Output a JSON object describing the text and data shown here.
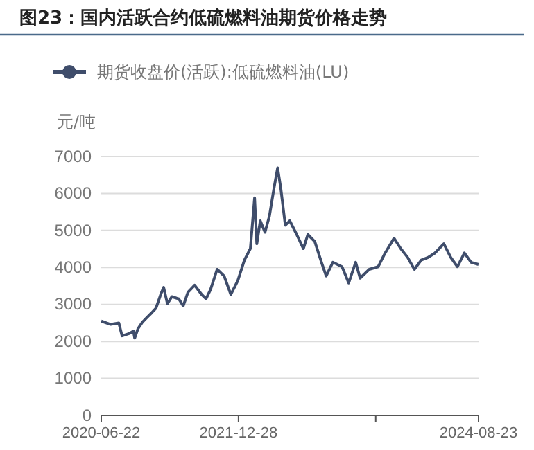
{
  "chart_data": {
    "type": "line",
    "title": "图23：国内活跃合约低硫燃料油期货价格走势",
    "ylabel": "元/吨",
    "x": [
      "2020-06-22",
      "2020-07-30",
      "2020-09-01",
      "2020-09-14",
      "2020-10-12",
      "2020-10-30",
      "2020-11-04",
      "2020-11-17",
      "2020-12-05",
      "2020-12-24",
      "2021-01-11",
      "2021-01-29",
      "2021-02-17",
      "2021-03-01",
      "2021-03-16",
      "2021-04-03",
      "2021-05-01",
      "2021-05-19",
      "2021-06-07",
      "2021-07-04",
      "2021-08-01",
      "2021-08-19",
      "2021-09-06",
      "2021-10-03",
      "2021-10-31",
      "2021-11-27",
      "2021-12-25",
      "2022-01-21",
      "2022-02-14",
      "2022-03-03",
      "2022-03-12",
      "2022-03-26",
      "2022-04-14",
      "2022-05-02",
      "2022-05-20",
      "2022-06-04",
      "2022-06-17",
      "2022-07-05",
      "2022-07-23",
      "2022-08-20",
      "2022-09-16",
      "2022-10-04",
      "2022-11-01",
      "2022-11-28",
      "2022-12-17",
      "2023-01-13",
      "2023-02-19",
      "2023-03-18",
      "2023-04-15",
      "2023-05-03",
      "2023-06-09",
      "2023-07-15",
      "2023-08-12",
      "2023-09-17",
      "2023-10-14",
      "2023-11-11",
      "2023-12-08",
      "2024-01-05",
      "2024-02-01",
      "2024-02-29",
      "2024-04-05",
      "2024-05-03",
      "2024-05-30",
      "2024-06-27",
      "2024-07-24",
      "2024-08-23"
    ],
    "series": [
      {
        "name": "期货收盘价(活跃):低硫燃料油(LU)",
        "color": "#3f4d6b",
        "values": [
          2550,
          2460,
          2500,
          2150,
          2210,
          2280,
          2090,
          2340,
          2520,
          2650,
          2770,
          2900,
          3270,
          3460,
          3020,
          3210,
          3150,
          2960,
          3330,
          3520,
          3270,
          3150,
          3400,
          3950,
          3770,
          3270,
          3640,
          4200,
          4510,
          5880,
          4640,
          5260,
          4950,
          5390,
          6130,
          6690,
          6130,
          5140,
          5260,
          4890,
          4510,
          4890,
          4700,
          4140,
          3770,
          4140,
          4020,
          3580,
          4140,
          3710,
          3950,
          4020,
          4390,
          4790,
          4510,
          4270,
          3950,
          4200,
          4270,
          4390,
          4640,
          4270,
          4020,
          4390,
          4140,
          4080
        ]
      }
    ],
    "xlim": [
      "2020-06-22",
      "2024-08-23"
    ],
    "xticks": [
      {
        "value": "2020-06-22",
        "label": "2020-06-22"
      },
      {
        "value": "2021-12-28",
        "label": "2021-12-28"
      },
      {
        "value": "2023-07-05",
        "label": null
      },
      {
        "value": "2024-08-23",
        "label": "2024-08-23"
      }
    ],
    "ylim": [
      0,
      7000
    ],
    "yticks": [
      0,
      1000,
      2000,
      3000,
      4000,
      5000,
      6000,
      7000
    ],
    "grid": "y",
    "legend": "top"
  }
}
